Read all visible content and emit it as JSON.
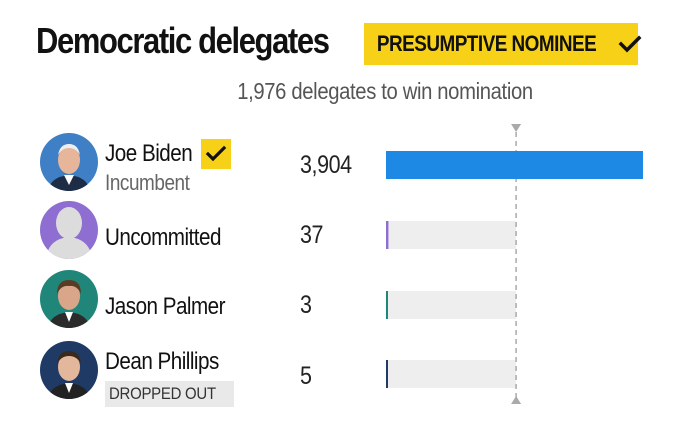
{
  "header": {
    "title": "Democratic delegates",
    "badge_label": "PRESUMPTIVE NOMINEE",
    "badge_icon": "check-icon",
    "subtitle": "1,976 delegates to win nomination"
  },
  "colors": {
    "badge": "#f7d117",
    "threshold_line": "#aaaaaa",
    "track": "#eeeeee"
  },
  "candidates": [
    {
      "name": "Joe Biden",
      "subtitle": "Incumbent",
      "tag": "",
      "winner_check": "check-icon",
      "value_label": "3,904",
      "color": "#1e88e5",
      "avatar": "joe-biden-photo"
    },
    {
      "name": "Uncommitted",
      "subtitle": "",
      "tag": "",
      "value_label": "37",
      "color": "#8e6fd1",
      "avatar": "placeholder-silhouette"
    },
    {
      "name": "Jason Palmer",
      "subtitle": "",
      "tag": "",
      "value_label": "3",
      "color": "#21867a",
      "avatar": "jason-palmer-photo"
    },
    {
      "name": "Dean Phillips",
      "subtitle": "",
      "tag": "DROPPED OUT",
      "value_label": "5",
      "color": "#1f3a64",
      "avatar": "dean-phillips-photo"
    }
  ],
  "chart_data": {
    "type": "bar",
    "orientation": "horizontal",
    "categories": [
      "Joe Biden",
      "Uncommitted",
      "Jason Palmer",
      "Dean Phillips"
    ],
    "values": [
      3904,
      37,
      3,
      5
    ],
    "threshold": 1976,
    "xlim": [
      0,
      3904
    ],
    "grid": false,
    "legend": "none"
  }
}
